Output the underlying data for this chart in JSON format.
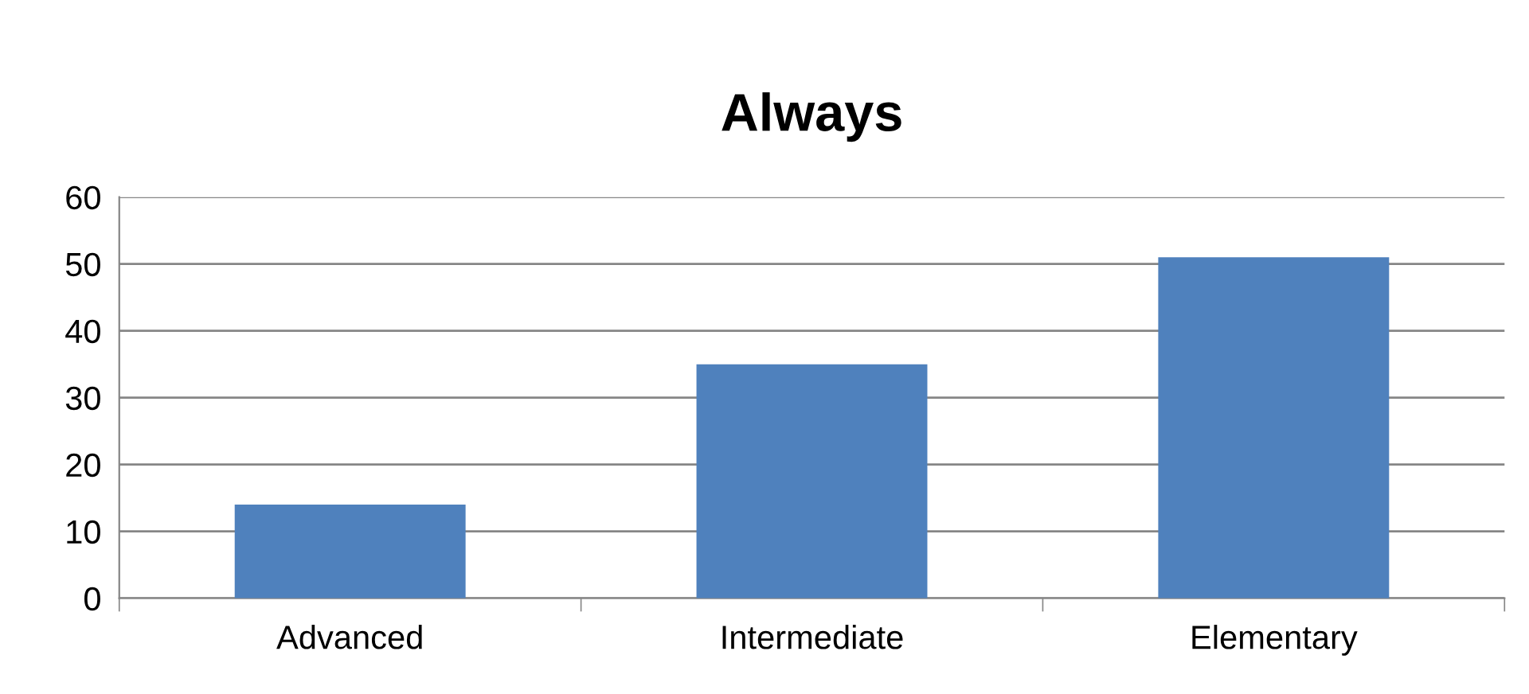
{
  "chart_data": {
    "type": "bar",
    "title": "Always",
    "categories": [
      "Advanced",
      "Intermediate",
      "Elementary"
    ],
    "values": [
      14,
      35,
      51
    ],
    "color": "#4f81bd",
    "ylim": [
      0,
      60
    ],
    "yticks": [
      0,
      10,
      20,
      30,
      40,
      50,
      60
    ],
    "grid": "y",
    "legend": false
  }
}
